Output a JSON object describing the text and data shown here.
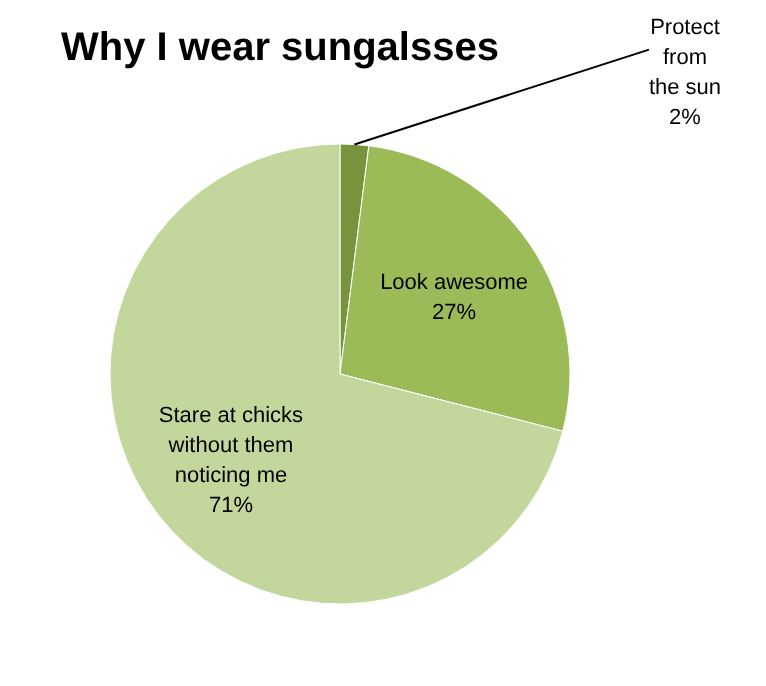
{
  "chart_data": {
    "type": "pie",
    "title": "Why I wear sungalsses",
    "categories": [
      "Protect from the sun",
      "Look awesome",
      "Stare at chicks without them noticing me"
    ],
    "values": [
      2,
      27,
      71
    ],
    "colors": [
      "#77933c",
      "#9bbb59",
      "#c3d69b"
    ],
    "value_labels": [
      "2%",
      "27%",
      "71%"
    ]
  }
}
